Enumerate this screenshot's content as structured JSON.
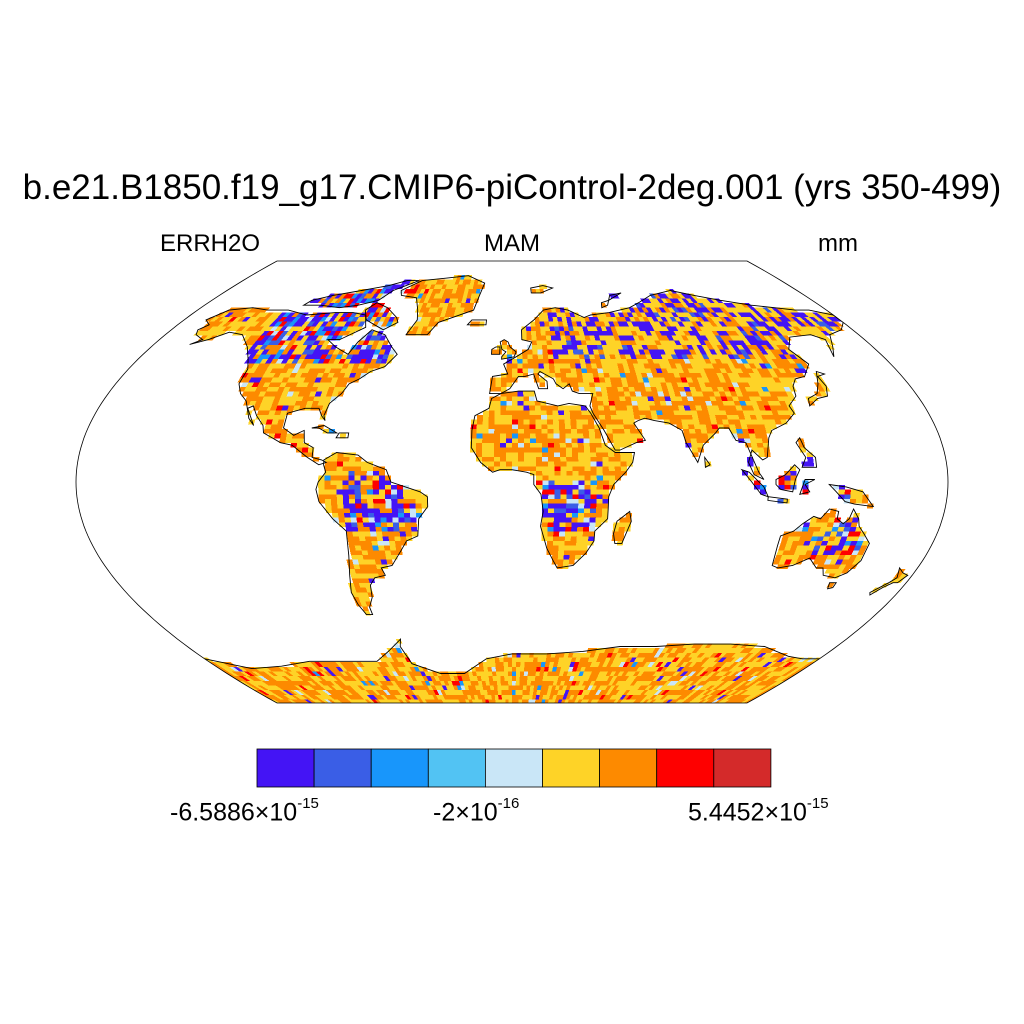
{
  "title": "b.e21.B1850.f19_g17.CMIP6-piControl-2deg.001 (yrs 350-499)",
  "variable": "ERRH2O",
  "season": "MAM",
  "units": "mm",
  "colorbar": {
    "colors": [
      "#4414f5",
      "#3a5ee6",
      "#1896fb",
      "#52c3f3",
      "#c9e6f7",
      "#fed327",
      "#fd8a00",
      "#fe0000",
      "#d42a2a"
    ],
    "labels": [
      {
        "mantissa": "-6.5886",
        "times": "×10",
        "exponent": "-15"
      },
      {
        "mantissa": "-2",
        "times": "×10",
        "exponent": "-16"
      },
      {
        "mantissa": "5.4452",
        "times": "×10",
        "exponent": "-15"
      }
    ]
  }
}
